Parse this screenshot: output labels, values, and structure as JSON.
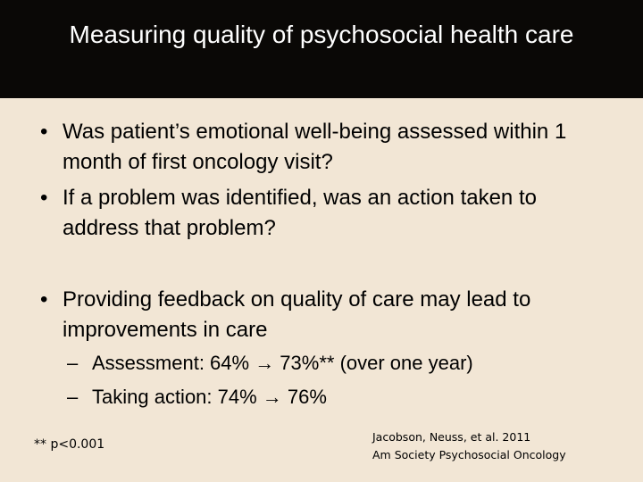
{
  "slide": {
    "title": "Measuring quality of psychosocial health care",
    "bullet_symbol": "•",
    "dash_symbol": "–",
    "bullets": [
      "Was patient’s emotional well-being assessed within 1 month of first oncology visit?",
      "If a problem was identified, was an action taken to address that problem?",
      "Providing feedback on quality of care may lead to improvements in care"
    ],
    "subbullets": [
      "Assessment:  64% → 73%** (over one year)",
      "Taking action:  74% → 76%"
    ],
    "footnote": "** p<0.001",
    "citation": {
      "line1": "Jacobson, Neuss, et al.  2011",
      "line2": "Am Society Psychosocial Oncology"
    }
  },
  "colors": {
    "title_bar": "#0a0806",
    "background": "#f2e6d5",
    "title_text": "#ffffff",
    "body_text": "#000000"
  }
}
